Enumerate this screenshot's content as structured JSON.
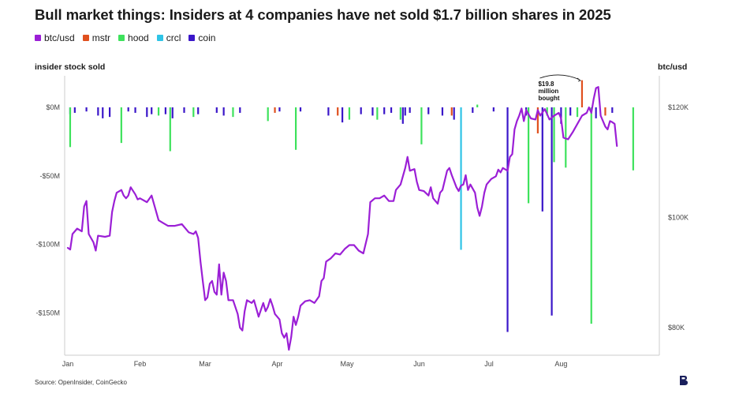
{
  "title": "Bull market things: Insiders at 4 companies have net sold $1.7 billion shares in 2025",
  "legend": [
    {
      "label": "btc/usd",
      "color": "#9b1fd6"
    },
    {
      "label": "mstr",
      "color": "#e0501e"
    },
    {
      "label": "hood",
      "color": "#3ee25c"
    },
    {
      "label": "crcl",
      "color": "#2ec4e6"
    },
    {
      "label": "coin",
      "color": "#3a16c9"
    }
  ],
  "source": "Source: OpenInsider, CoinGecko",
  "chart_data": {
    "type": "bar",
    "left_axis_title": "insider stock sold",
    "right_axis_title": "btc/usd",
    "left_ylim": [
      -175,
      0
    ],
    "left_ticks": [
      {
        "value": 0,
        "label": "$0M"
      },
      {
        "value": -50,
        "label": "-$50M"
      },
      {
        "value": -100,
        "label": "-$100M"
      },
      {
        "value": -150,
        "label": "-$150M"
      }
    ],
    "right_ticks": [
      {
        "value": 120000,
        "label": "$120K"
      },
      {
        "value": 100000,
        "label": "$100K"
      },
      {
        "value": 80000,
        "label": "$80K"
      }
    ],
    "x_ticks": [
      {
        "day": 1,
        "label": "Jan"
      },
      {
        "day": 32,
        "label": "Feb"
      },
      {
        "day": 60,
        "label": "Mar"
      },
      {
        "day": 91,
        "label": "Apr"
      },
      {
        "day": 121,
        "label": "May"
      },
      {
        "day": 152,
        "label": "Jun"
      },
      {
        "day": 182,
        "label": "Jul"
      },
      {
        "day": 213,
        "label": "Aug"
      }
    ],
    "annotation": {
      "lines": [
        "$19.8",
        "million",
        "bought"
      ],
      "value": 19.8,
      "day": 212
    },
    "bars": [
      {
        "series": "coin",
        "day": 2,
        "value": -5
      },
      {
        "series": "hood",
        "day": 2,
        "value": -29
      },
      {
        "series": "coin",
        "day": 4,
        "value": -4
      },
      {
        "series": "coin",
        "day": 9,
        "value": -3
      },
      {
        "series": "coin",
        "day": 14,
        "value": -6
      },
      {
        "series": "coin",
        "day": 16,
        "value": -8
      },
      {
        "series": "coin",
        "day": 19,
        "value": -7
      },
      {
        "series": "hood",
        "day": 24,
        "value": -26
      },
      {
        "series": "coin",
        "day": 27,
        "value": -3
      },
      {
        "series": "coin",
        "day": 30,
        "value": -4
      },
      {
        "series": "coin",
        "day": 35,
        "value": -7
      },
      {
        "series": "coin",
        "day": 37,
        "value": -5
      },
      {
        "series": "hood",
        "day": 40,
        "value": -6
      },
      {
        "series": "coin",
        "day": 43,
        "value": -5
      },
      {
        "series": "hood",
        "day": 45,
        "value": -32
      },
      {
        "series": "coin",
        "day": 46,
        "value": -8
      },
      {
        "series": "coin",
        "day": 51,
        "value": -4
      },
      {
        "series": "hood",
        "day": 55,
        "value": -7
      },
      {
        "series": "coin",
        "day": 57,
        "value": -5
      },
      {
        "series": "coin",
        "day": 65,
        "value": -4
      },
      {
        "series": "coin",
        "day": 68,
        "value": -6
      },
      {
        "series": "hood",
        "day": 72,
        "value": -7
      },
      {
        "series": "coin",
        "day": 75,
        "value": -4
      },
      {
        "series": "hood",
        "day": 87,
        "value": -10
      },
      {
        "series": "mstr",
        "day": 90,
        "value": -4
      },
      {
        "series": "coin",
        "day": 92,
        "value": -3
      },
      {
        "series": "hood",
        "day": 99,
        "value": -31
      },
      {
        "series": "coin",
        "day": 101,
        "value": -3
      },
      {
        "series": "coin",
        "day": 113,
        "value": -6
      },
      {
        "series": "mstr",
        "day": 117,
        "value": -6
      },
      {
        "series": "coin",
        "day": 119,
        "value": -11
      },
      {
        "series": "hood",
        "day": 122,
        "value": -9
      },
      {
        "series": "coin",
        "day": 127,
        "value": -5
      },
      {
        "series": "coin",
        "day": 132,
        "value": -6
      },
      {
        "series": "hood",
        "day": 134,
        "value": -9
      },
      {
        "series": "coin",
        "day": 137,
        "value": -5
      },
      {
        "series": "coin",
        "day": 140,
        "value": -4
      },
      {
        "series": "hood",
        "day": 144,
        "value": -9
      },
      {
        "series": "coin",
        "day": 145,
        "value": -12
      },
      {
        "series": "coin",
        "day": 146,
        "value": -6
      },
      {
        "series": "coin",
        "day": 148,
        "value": -4
      },
      {
        "series": "hood",
        "day": 153,
        "value": -27
      },
      {
        "series": "coin",
        "day": 156,
        "value": -5
      },
      {
        "series": "coin",
        "day": 162,
        "value": -6
      },
      {
        "series": "mstr",
        "day": 166,
        "value": -6
      },
      {
        "series": "coin",
        "day": 167,
        "value": -9
      },
      {
        "series": "crcl",
        "day": 170,
        "value": -104
      },
      {
        "series": "coin",
        "day": 175,
        "value": -4
      },
      {
        "series": "hood",
        "day": 177,
        "value": 2
      },
      {
        "series": "coin",
        "day": 184,
        "value": -3
      },
      {
        "series": "coin",
        "day": 190,
        "value": -164
      },
      {
        "series": "coin",
        "day": 198,
        "value": -6
      },
      {
        "series": "hood",
        "day": 199,
        "value": -70
      },
      {
        "series": "mstr",
        "day": 203,
        "value": -19
      },
      {
        "series": "coin",
        "day": 205,
        "value": -76
      },
      {
        "series": "hood",
        "day": 207,
        "value": -6
      },
      {
        "series": "coin",
        "day": 209,
        "value": -152
      },
      {
        "series": "hood",
        "day": 210,
        "value": -40
      },
      {
        "series": "coin",
        "day": 213,
        "value": -12
      },
      {
        "series": "hood",
        "day": 215,
        "value": -44
      },
      {
        "series": "coin",
        "day": 217,
        "value": -6
      },
      {
        "series": "hood",
        "day": 220,
        "value": -7
      },
      {
        "series": "mstr",
        "day": 222,
        "value": 19.8
      },
      {
        "series": "hood",
        "day": 226,
        "value": -158
      },
      {
        "series": "coin",
        "day": 228,
        "value": -8
      },
      {
        "series": "mstr",
        "day": 232,
        "value": -6
      },
      {
        "series": "coin",
        "day": 235,
        "value": -4
      },
      {
        "series": "hood",
        "day": 244,
        "value": -46
      }
    ],
    "btc": [
      [
        1,
        94500
      ],
      [
        2,
        94200
      ],
      [
        3,
        97000
      ],
      [
        5,
        98000
      ],
      [
        7,
        97500
      ],
      [
        8,
        102000
      ],
      [
        9,
        103000
      ],
      [
        10,
        97000
      ],
      [
        12,
        95500
      ],
      [
        13,
        94000
      ],
      [
        14,
        96700
      ],
      [
        17,
        96500
      ],
      [
        19,
        96700
      ],
      [
        20,
        101000
      ],
      [
        21,
        103000
      ],
      [
        22,
        104500
      ],
      [
        24,
        105000
      ],
      [
        25,
        104000
      ],
      [
        26,
        103500
      ],
      [
        27,
        104000
      ],
      [
        28,
        105500
      ],
      [
        30,
        104200
      ],
      [
        31,
        103300
      ],
      [
        32,
        103500
      ],
      [
        35,
        102800
      ],
      [
        37,
        104000
      ],
      [
        40,
        99500
      ],
      [
        42,
        99000
      ],
      [
        44,
        98500
      ],
      [
        47,
        98500
      ],
      [
        50,
        98800
      ],
      [
        53,
        97300
      ],
      [
        55,
        97000
      ],
      [
        56,
        97500
      ],
      [
        57,
        96300
      ],
      [
        58,
        92000
      ],
      [
        59,
        88500
      ],
      [
        60,
        85000
      ],
      [
        61,
        85500
      ],
      [
        62,
        88000
      ],
      [
        63,
        88500
      ],
      [
        64,
        86500
      ],
      [
        65,
        86000
      ],
      [
        66,
        91500
      ],
      [
        67,
        86000
      ],
      [
        68,
        90000
      ],
      [
        69,
        88500
      ],
      [
        70,
        85000
      ],
      [
        72,
        85000
      ],
      [
        74,
        82500
      ],
      [
        75,
        80000
      ],
      [
        76,
        79500
      ],
      [
        77,
        83000
      ],
      [
        78,
        85000
      ],
      [
        80,
        84500
      ],
      [
        81,
        85000
      ],
      [
        82,
        83500
      ],
      [
        83,
        82000
      ],
      [
        85,
        84500
      ],
      [
        86,
        83000
      ],
      [
        87,
        83800
      ],
      [
        88,
        85200
      ],
      [
        89,
        84000
      ],
      [
        90,
        82500
      ],
      [
        91,
        82000
      ],
      [
        92,
        81500
      ],
      [
        93,
        79000
      ],
      [
        94,
        78200
      ],
      [
        95,
        79000
      ],
      [
        96,
        76000
      ],
      [
        97,
        78300
      ],
      [
        98,
        82000
      ],
      [
        99,
        80500
      ],
      [
        100,
        82000
      ],
      [
        101,
        84000
      ],
      [
        103,
        84800
      ],
      [
        105,
        85000
      ],
      [
        107,
        84500
      ],
      [
        109,
        85700
      ],
      [
        110,
        88500
      ],
      [
        111,
        89000
      ],
      [
        112,
        92000
      ],
      [
        114,
        92600
      ],
      [
        116,
        93500
      ],
      [
        118,
        93300
      ],
      [
        120,
        94300
      ],
      [
        122,
        95000
      ],
      [
        124,
        95000
      ],
      [
        126,
        94000
      ],
      [
        128,
        93500
      ],
      [
        130,
        97000
      ],
      [
        131,
        102800
      ],
      [
        133,
        103500
      ],
      [
        135,
        103500
      ],
      [
        137,
        104000
      ],
      [
        139,
        103000
      ],
      [
        141,
        103000
      ],
      [
        142,
        105000
      ],
      [
        144,
        106000
      ],
      [
        146,
        109000
      ],
      [
        147,
        111000
      ],
      [
        148,
        108500
      ],
      [
        150,
        108800
      ],
      [
        151,
        106500
      ],
      [
        152,
        105000
      ],
      [
        154,
        104800
      ],
      [
        156,
        104000
      ],
      [
        157,
        105500
      ],
      [
        158,
        103500
      ],
      [
        160,
        102500
      ],
      [
        161,
        104500
      ],
      [
        162,
        105000
      ],
      [
        164,
        108500
      ],
      [
        165,
        109000
      ],
      [
        166,
        107700
      ],
      [
        168,
        105500
      ],
      [
        169,
        104800
      ],
      [
        170,
        105800
      ],
      [
        171,
        106000
      ],
      [
        172,
        107700
      ],
      [
        173,
        105000
      ],
      [
        174,
        106000
      ],
      [
        176,
        104500
      ],
      [
        177,
        101800
      ],
      [
        178,
        100300
      ],
      [
        179,
        102000
      ],
      [
        180,
        104500
      ],
      [
        181,
        106000
      ],
      [
        183,
        107000
      ],
      [
        185,
        107500
      ],
      [
        186,
        108700
      ],
      [
        187,
        108200
      ],
      [
        188,
        109000
      ],
      [
        190,
        108500
      ],
      [
        191,
        111000
      ],
      [
        192,
        111500
      ],
      [
        193,
        116000
      ],
      [
        194,
        117500
      ],
      [
        195,
        118500
      ],
      [
        196,
        119800
      ],
      [
        197,
        117500
      ],
      [
        198,
        119500
      ],
      [
        200,
        118000
      ],
      [
        202,
        117800
      ],
      [
        203,
        119500
      ],
      [
        204,
        118500
      ],
      [
        206,
        119700
      ],
      [
        208,
        117800
      ],
      [
        210,
        118500
      ],
      [
        212,
        119000
      ],
      [
        213,
        118000
      ],
      [
        214,
        114500
      ],
      [
        216,
        114200
      ],
      [
        218,
        115500
      ],
      [
        220,
        117000
      ],
      [
        222,
        118500
      ],
      [
        224,
        119000
      ],
      [
        225,
        120000
      ],
      [
        226,
        119000
      ],
      [
        227,
        121500
      ],
      [
        228,
        123500
      ],
      [
        229,
        123700
      ],
      [
        230,
        118500
      ],
      [
        232,
        116500
      ],
      [
        233,
        116000
      ],
      [
        234,
        117500
      ],
      [
        235,
        117300
      ],
      [
        236,
        117000
      ],
      [
        237,
        113000
      ]
    ]
  }
}
